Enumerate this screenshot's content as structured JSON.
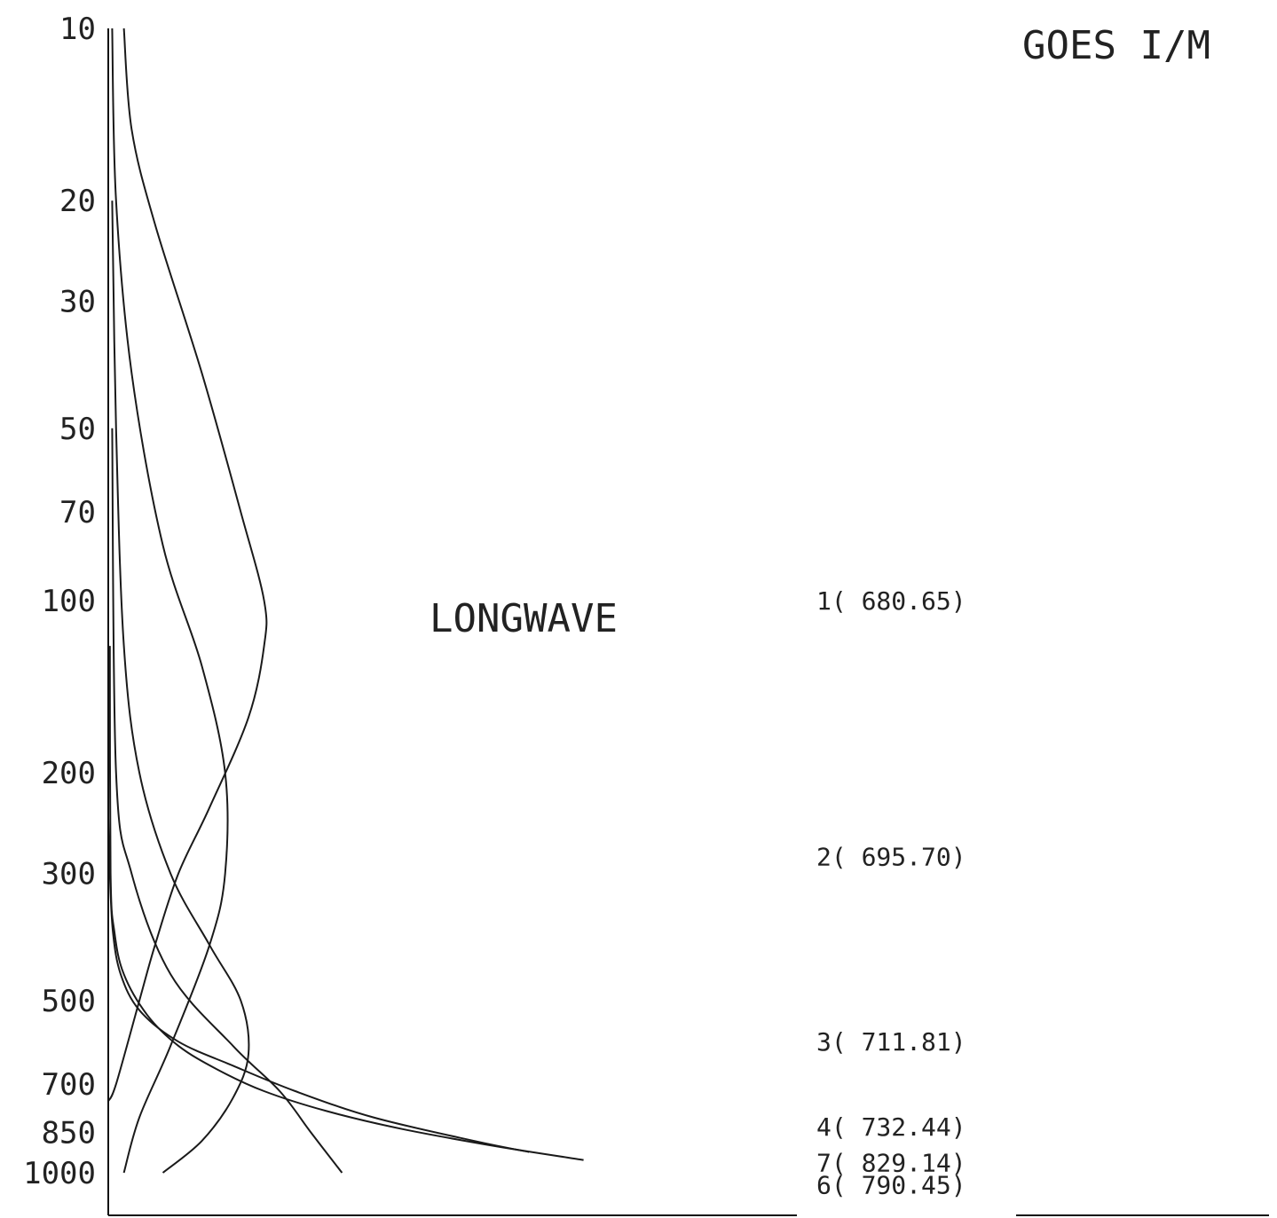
{
  "chart_data": {
    "type": "line",
    "title": "GOES I/M",
    "annotation": "LONGWAVE",
    "y_scale": "log",
    "y_inverted": true,
    "ylim": [
      10,
      1000
    ],
    "y_ticks": [
      10,
      20,
      30,
      50,
      70,
      100,
      200,
      300,
      500,
      700,
      850,
      1000
    ],
    "y_tick_labels": [
      "10",
      "20",
      "30",
      "50",
      "70",
      "100",
      "200",
      "300",
      "500",
      "700",
      "850",
      "1000"
    ],
    "xlim": [
      0,
      1
    ],
    "grid": false,
    "channel_labels": [
      {
        "label": "1( 680.65)",
        "p": 100
      },
      {
        "label": "2( 695.70)",
        "p": 280
      },
      {
        "label": "3( 711.81)",
        "p": 590
      },
      {
        "label": "4( 732.44)",
        "p": 830
      },
      {
        "label": "7( 829.14)",
        "p": 960
      },
      {
        "label": "6( 790.45)",
        "p": 1050
      }
    ],
    "series": [
      {
        "x": [
          0.02,
          0.03,
          0.06,
          0.12,
          0.17,
          0.2,
          0.2,
          0.18,
          0.13,
          0.09,
          0.06,
          0.04,
          0.01,
          0.0
        ],
        "p": [
          10,
          15,
          22,
          40,
          70,
          100,
          120,
          160,
          230,
          300,
          400,
          500,
          700,
          750
        ]
      },
      {
        "x": [
          0.005,
          0.01,
          0.03,
          0.07,
          0.12,
          0.15,
          0.15,
          0.13,
          0.08,
          0.04,
          0.02
        ],
        "p": [
          10,
          20,
          40,
          80,
          130,
          200,
          300,
          400,
          600,
          800,
          1000
        ]
      },
      {
        "x": [
          0.005,
          0.01,
          0.02,
          0.04,
          0.08,
          0.13,
          0.17,
          0.18,
          0.16,
          0.12,
          0.07
        ],
        "p": [
          20,
          50,
          120,
          200,
          300,
          400,
          500,
          620,
          740,
          880,
          1000
        ]
      },
      {
        "x": [
          0.005,
          0.01,
          0.03,
          0.08,
          0.16,
          0.22,
          0.26,
          0.3
        ],
        "p": [
          50,
          200,
          300,
          450,
          600,
          720,
          850,
          1000
        ]
      },
      {
        "x": [
          0.002,
          0.003,
          0.008,
          0.02,
          0.05,
          0.09,
          0.14,
          0.2,
          0.28,
          0.38,
          0.5,
          0.61
        ],
        "p": [
          120,
          300,
          380,
          450,
          530,
          600,
          660,
          720,
          780,
          840,
          900,
          950
        ]
      },
      {
        "x": [
          0.0,
          0.002,
          0.006,
          0.016,
          0.04,
          0.09,
          0.16,
          0.24,
          0.34,
          0.47,
          0.54
        ],
        "p": [
          240,
          300,
          380,
          450,
          520,
          590,
          650,
          720,
          800,
          880,
          920
        ]
      }
    ]
  }
}
